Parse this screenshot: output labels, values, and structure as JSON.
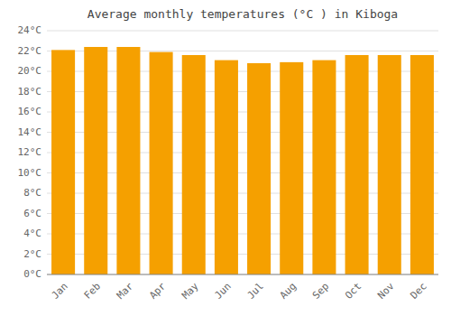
{
  "chart_data": {
    "type": "bar",
    "title": "Average monthly temperatures (°C ) in Kiboga",
    "categories": [
      "Jan",
      "Feb",
      "Mar",
      "Apr",
      "May",
      "Jun",
      "Jul",
      "Aug",
      "Sep",
      "Oct",
      "Nov",
      "Dec"
    ],
    "values": [
      22.1,
      22.4,
      22.4,
      21.9,
      21.6,
      21.1,
      20.8,
      20.9,
      21.1,
      21.6,
      21.6,
      21.6
    ],
    "color": "#F5A000",
    "ylim": [
      0,
      24
    ],
    "yticks": [
      {
        "value": 0,
        "label": "0°C"
      },
      {
        "value": 2,
        "label": "2°C"
      },
      {
        "value": 4,
        "label": "4°C"
      },
      {
        "value": 6,
        "label": "6°C"
      },
      {
        "value": 8,
        "label": "8°C"
      },
      {
        "value": 10,
        "label": "10°C"
      },
      {
        "value": 12,
        "label": "12°C"
      },
      {
        "value": 14,
        "label": "14°C"
      },
      {
        "value": 16,
        "label": "16°C"
      },
      {
        "value": 18,
        "label": "18°C"
      },
      {
        "value": 20,
        "label": "20°C"
      },
      {
        "value": 22,
        "label": "22°C"
      },
      {
        "value": 24,
        "label": "24°C"
      }
    ],
    "grid": true
  }
}
